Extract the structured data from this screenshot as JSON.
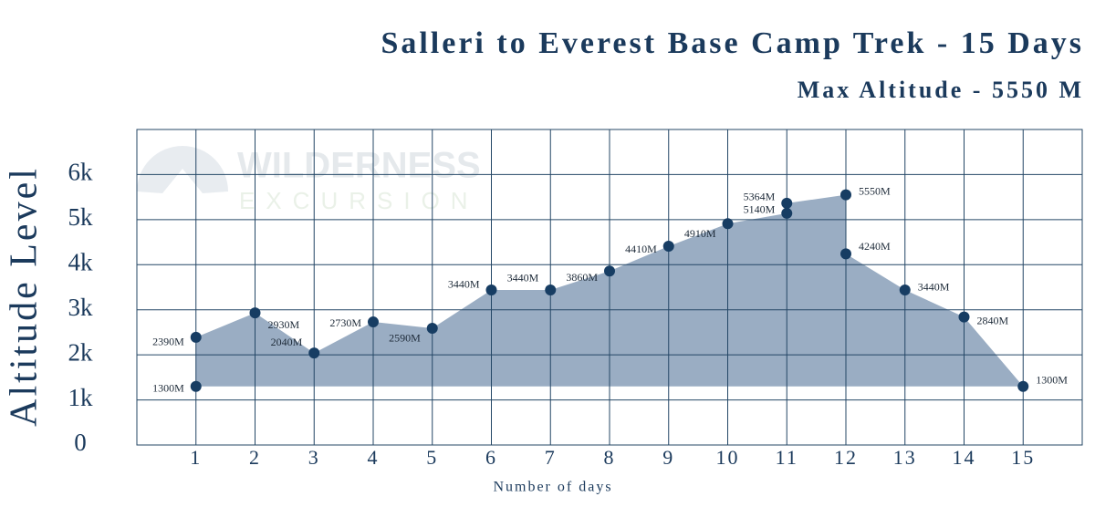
{
  "chart_data": {
    "type": "area",
    "title": "Salleri to Everest Base Camp Trek - 15 Days",
    "subtitle": "Max Altitude - 5550 M",
    "watermark": [
      "WILDERNESS",
      "EXCURSION"
    ],
    "ylabel": "Altitude Level",
    "xlabel": "Number of days",
    "x": [
      1,
      1,
      2,
      3,
      4,
      5,
      6,
      7,
      8,
      9,
      10,
      11,
      11,
      12,
      12,
      13,
      14,
      15
    ],
    "values": [
      1300,
      2390,
      2930,
      2040,
      2730,
      2590,
      3440,
      3440,
      3860,
      4410,
      4910,
      5140,
      5364,
      5550,
      4240,
      3440,
      2840,
      1300
    ],
    "value_labels": [
      "1300M",
      "2390M",
      "2930M",
      "2040M",
      "2730M",
      "2590M",
      "3440M",
      "3440M",
      "3860M",
      "4410M",
      "4910M",
      "5140M",
      "5364M",
      "5550M",
      "4240M",
      "3440M",
      "2840M",
      "1300M"
    ],
    "color": "#9aadc3",
    "marker_color": "#173d63",
    "xlim": [
      0,
      16
    ],
    "xticks": [
      1,
      2,
      3,
      4,
      5,
      6,
      7,
      8,
      9,
      10,
      11,
      12,
      13,
      14,
      15
    ],
    "ylim": [
      0,
      7000
    ],
    "yticks": [
      0,
      {
        "value": 1000,
        "label": "1k"
      },
      {
        "value": 2000,
        "label": "2k"
      },
      {
        "value": 3000,
        "label": "3k"
      },
      {
        "value": 4000,
        "label": "4k"
      },
      {
        "value": 5000,
        "label": "5k"
      },
      {
        "value": 6000,
        "label": "6k"
      }
    ],
    "grid": true
  }
}
